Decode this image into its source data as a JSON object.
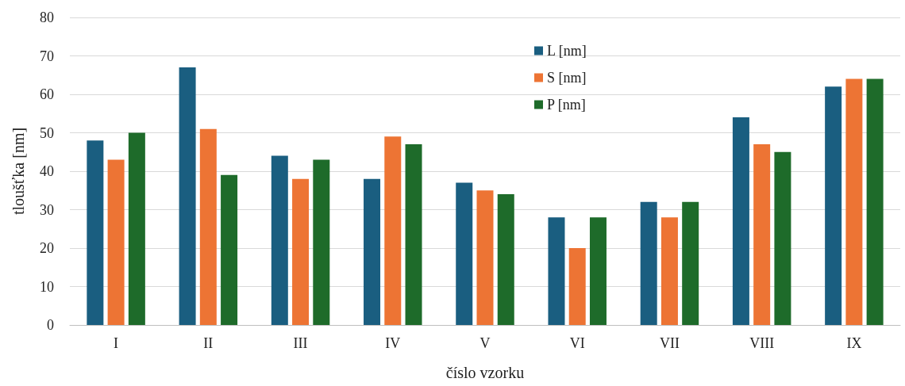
{
  "chart_data": {
    "type": "bar",
    "xlabel": "číslo vzorku",
    "ylabel": "tloušťka [nm]",
    "categories": [
      "I",
      "II",
      "III",
      "IV",
      "V",
      "VI",
      "VII",
      "VIII",
      "IX"
    ],
    "series": [
      {
        "name": "L [nm]",
        "color": "#1a5e80",
        "values": [
          48,
          67,
          44,
          38,
          37,
          28,
          32,
          54,
          62
        ]
      },
      {
        "name": "S [nm]",
        "color": "#ed7434",
        "values": [
          43,
          51,
          38,
          49,
          35,
          20,
          28,
          47,
          64
        ]
      },
      {
        "name": "P [nm]",
        "color": "#1e6b2a",
        "values": [
          50,
          39,
          43,
          47,
          34,
          28,
          32,
          45,
          64
        ]
      }
    ],
    "ylim": [
      0,
      80
    ],
    "yticks": [
      0,
      10,
      20,
      30,
      40,
      50,
      60,
      70,
      80
    ],
    "grid": "y",
    "legend": "top"
  }
}
